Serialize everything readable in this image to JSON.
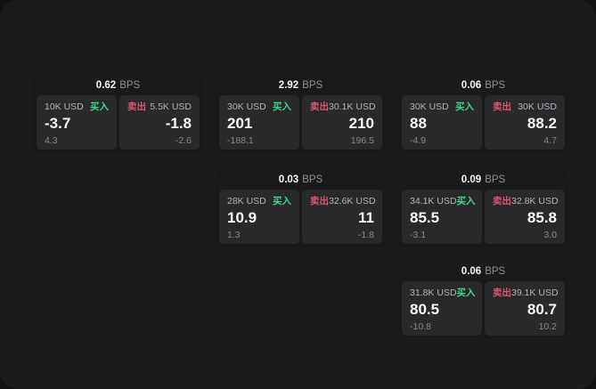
{
  "labels": {
    "bps": "BPS",
    "buy": "买入",
    "sell": "卖出"
  },
  "colors": {
    "surface_bg": "#1c1c1e",
    "card_bg": "#1a1a1c",
    "panel_bg": "#29292b",
    "buy_green": "#3ed68c",
    "sell_red": "#df5672"
  },
  "cards": [
    {
      "bps": "0.62",
      "buy": {
        "amount": "10K USD",
        "value": "-3.7",
        "sub": "4.3"
      },
      "sell": {
        "amount": "5.5K USD",
        "value": "-1.8",
        "sub": "-2.6"
      }
    },
    {
      "bps": "2.92",
      "buy": {
        "amount": "30K USD",
        "value": "201",
        "sub": "-188.1"
      },
      "sell": {
        "amount": "30.1K USD",
        "value": "210",
        "sub": "196.5"
      }
    },
    {
      "bps": "0.06",
      "buy": {
        "amount": "30K USD",
        "value": "88",
        "sub": "-4.9"
      },
      "sell": {
        "amount": "30K USD",
        "value": "88.2",
        "sub": "4.7"
      }
    },
    {
      "bps": "0.03",
      "buy": {
        "amount": "28K USD",
        "value": "10.9",
        "sub": "1.3"
      },
      "sell": {
        "amount": "32.6K USD",
        "value": "11",
        "sub": "-1.8"
      }
    },
    {
      "bps": "0.09",
      "buy": {
        "amount": "34.1K USD",
        "value": "85.5",
        "sub": "-3.1"
      },
      "sell": {
        "amount": "32.8K USD",
        "value": "85.8",
        "sub": "3.0"
      }
    },
    {
      "bps": "0.06",
      "buy": {
        "amount": "31.8K USD",
        "value": "80.5",
        "sub": "-10.8"
      },
      "sell": {
        "amount": "39.1K USD",
        "value": "80.7",
        "sub": "10.2"
      }
    }
  ]
}
